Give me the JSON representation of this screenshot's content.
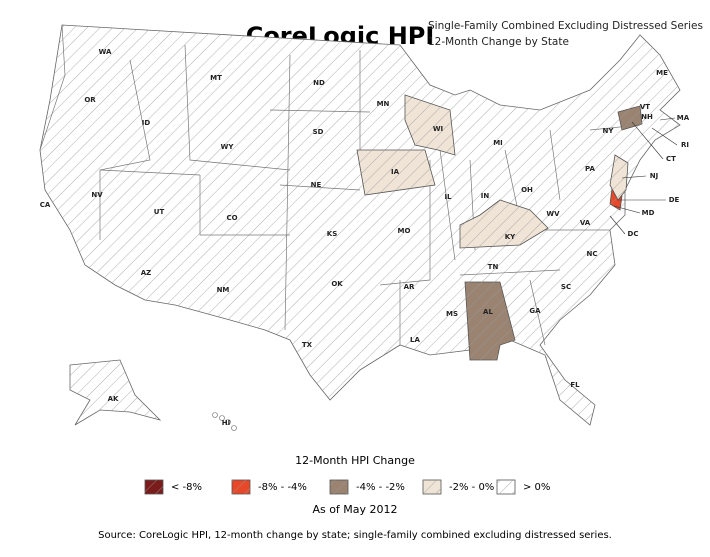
{
  "header": {
    "title": "CoreLogic HPI",
    "subtitle": [
      "Single-Family Combined Excluding Distressed Series",
      "12-Month Change by State"
    ]
  },
  "legend": {
    "title": "12-Month HPI Change",
    "items": [
      {
        "label": "< -8%",
        "color": "#7b1c1c"
      },
      {
        "label": "-8% - -4%",
        "color": "#e8482a",
        "states": [
          "DE"
        ]
      },
      {
        "label": "-4% - -2%",
        "color": "#9a8370",
        "states": [
          "AL",
          "CT"
        ]
      },
      {
        "label": "-2% - 0%",
        "color": "#efe4d6",
        "states": [
          "WI",
          "IA",
          "KY",
          "NJ"
        ]
      },
      {
        "label": "> 0%",
        "color": "#ffffff",
        "states": [
          "WA",
          "OR",
          "CA",
          "NV",
          "ID",
          "MT",
          "WY",
          "UT",
          "AZ",
          "NM",
          "CO",
          "ND",
          "SD",
          "NE",
          "KS",
          "OK",
          "TX",
          "MN",
          "MO",
          "AR",
          "LA",
          "IL",
          "MI",
          "IN",
          "OH",
          "TN",
          "MS",
          "GA",
          "FL",
          "SC",
          "NC",
          "VA",
          "WV",
          "PA",
          "NY",
          "VT",
          "NH",
          "ME",
          "MA",
          "RI",
          "MD",
          "DC",
          "AK",
          "HI"
        ]
      }
    ]
  },
  "date": "As of May 2012",
  "source": "Source: CoreLogic HPI, 12-month change by state; single-family combined excluding distressed series."
}
